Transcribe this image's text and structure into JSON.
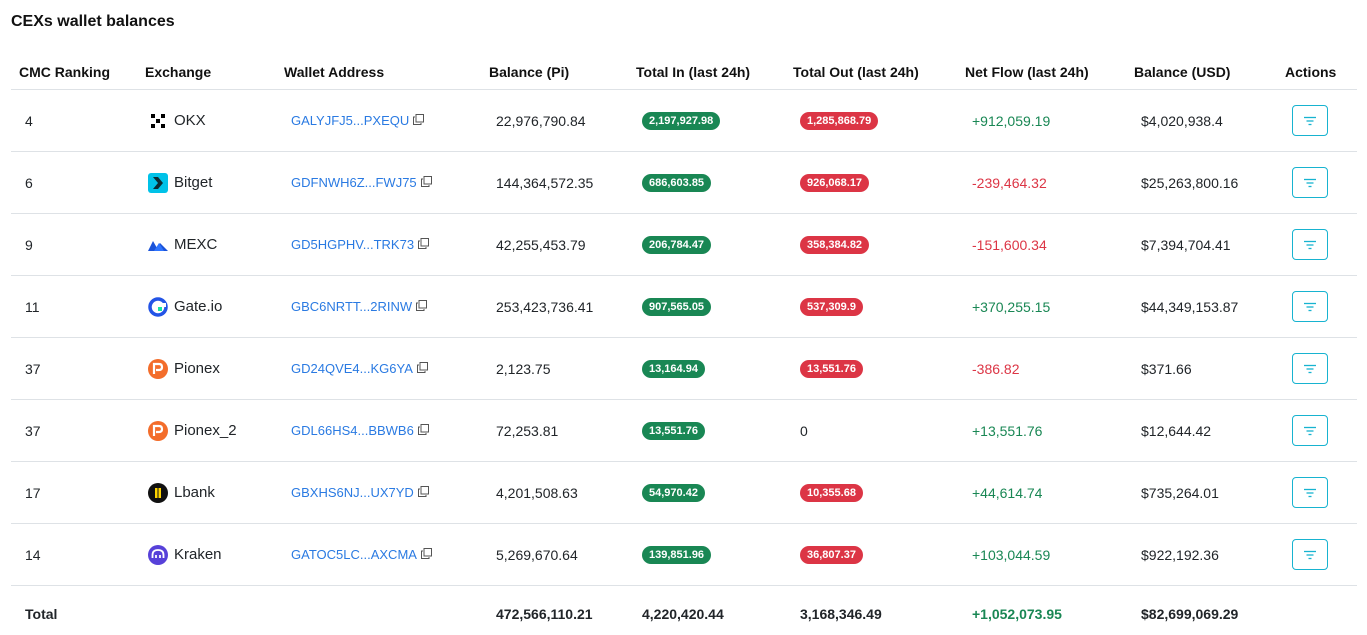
{
  "page": {
    "title": "CEXs wallet balances"
  },
  "columns": {
    "rank": "CMC Ranking",
    "exchange": "Exchange",
    "address": "Wallet Address",
    "balance_pi": "Balance (Pi)",
    "total_in": "Total In (last 24h)",
    "total_out": "Total Out (last 24h)",
    "net_flow": "Net Flow (last 24h)",
    "balance_usd": "Balance (USD)",
    "actions": "Actions"
  },
  "rows": [
    {
      "rank": "4",
      "exchange": "OKX",
      "logo": "okx-icon",
      "address": "GALYJFJ5...PXEQU",
      "balance_pi": "22,976,790.84",
      "total_in": "2,197,927.98",
      "total_out": "1,285,868.79",
      "net_flow": "+912,059.19",
      "balance_usd": "$4,020,938.4"
    },
    {
      "rank": "6",
      "exchange": "Bitget",
      "logo": "bitget-icon",
      "address": "GDFNWH6Z...FWJ75",
      "balance_pi": "144,364,572.35",
      "total_in": "686,603.85",
      "total_out": "926,068.17",
      "net_flow": "-239,464.32",
      "balance_usd": "$25,263,800.16"
    },
    {
      "rank": "9",
      "exchange": "MEXC",
      "logo": "mexc-icon",
      "address": "GD5HGPHV...TRK73",
      "balance_pi": "42,255,453.79",
      "total_in": "206,784.47",
      "total_out": "358,384.82",
      "net_flow": "-151,600.34",
      "balance_usd": "$7,394,704.41"
    },
    {
      "rank": "11",
      "exchange": "Gate.io",
      "logo": "gateio-icon",
      "address": "GBC6NRTT...2RINW",
      "balance_pi": "253,423,736.41",
      "total_in": "907,565.05",
      "total_out": "537,309.9",
      "net_flow": "+370,255.15",
      "balance_usd": "$44,349,153.87"
    },
    {
      "rank": "37",
      "exchange": "Pionex",
      "logo": "pionex-icon",
      "address": "GD24QVE4...KG6YA",
      "balance_pi": "2,123.75",
      "total_in": "13,164.94",
      "total_out": "13,551.76",
      "net_flow": "-386.82",
      "balance_usd": "$371.66"
    },
    {
      "rank": "37",
      "exchange": "Pionex_2",
      "logo": "pionex-icon",
      "address": "GDL66HS4...BBWB6",
      "balance_pi": "72,253.81",
      "total_in": "13,551.76",
      "total_out": "0",
      "net_flow": "+13,551.76",
      "balance_usd": "$12,644.42"
    },
    {
      "rank": "17",
      "exchange": "Lbank",
      "logo": "lbank-icon",
      "address": "GBXHS6NJ...UX7YD",
      "balance_pi": "4,201,508.63",
      "total_in": "54,970.42",
      "total_out": "10,355.68",
      "net_flow": "+44,614.74",
      "balance_usd": "$735,264.01"
    },
    {
      "rank": "14",
      "exchange": "Kraken",
      "logo": "kraken-icon",
      "address": "GATOC5LC...AXCMA",
      "balance_pi": "5,269,670.64",
      "total_in": "139,851.96",
      "total_out": "36,807.37",
      "net_flow": "+103,044.59",
      "balance_usd": "$922,192.36"
    }
  ],
  "totals": {
    "label": "Total",
    "balance_pi": "472,566,110.21",
    "total_in": "4,220,420.44",
    "total_out": "3,168,346.49",
    "net_flow": "+1,052,073.95",
    "balance_usd": "$82,699,069.29"
  },
  "colors": {
    "in_pill": "#198754",
    "out_pill": "#dc3545",
    "positive": "#198754",
    "negative": "#dc3545",
    "link": "#2a7ae2",
    "action_border": "#17b3d0"
  }
}
